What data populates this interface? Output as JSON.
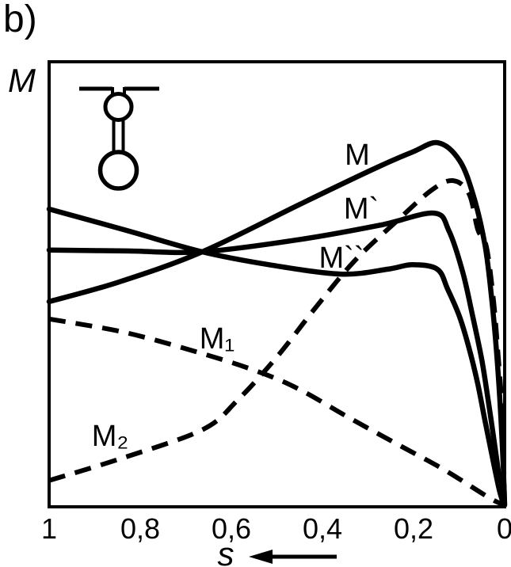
{
  "figure": {
    "panel_label": "b)",
    "background_color": "#ffffff",
    "ink_color": "#000000",
    "inset_icon": "double-cage-rotor-slot-icon",
    "x_direction_arrow": "points-left"
  },
  "chart_data": {
    "type": "line",
    "title": "",
    "xlabel": "s",
    "ylabel": "M",
    "grid": false,
    "legend_position": "inline-curve-labels",
    "x_axis": {
      "range": [
        1,
        0
      ],
      "reversed": true,
      "ticks": [
        {
          "value": 1.0,
          "label": "1"
        },
        {
          "value": 0.8,
          "label": "0,8"
        },
        {
          "value": 0.6,
          "label": "0,6"
        },
        {
          "value": 0.4,
          "label": "0,4"
        },
        {
          "value": 0.2,
          "label": "0,2"
        },
        {
          "value": 0.0,
          "label": "0"
        }
      ]
    },
    "y_axis": {
      "range": [
        0,
        1
      ],
      "ticks": []
    },
    "series": [
      {
        "id": "M",
        "label": "M",
        "style": "solid",
        "label_pos": {
          "x": 451,
          "y": 208
        },
        "points": [
          [
            1,
            0.461
          ],
          [
            0.847,
            0.505
          ],
          [
            0.664,
            0.573
          ],
          [
            0.447,
            0.681
          ],
          [
            0.29,
            0.758
          ],
          [
            0.203,
            0.797
          ],
          [
            0.146,
            0.818
          ],
          [
            0.099,
            0.778
          ],
          [
            0.068,
            0.697
          ],
          [
            0.043,
            0.587
          ],
          [
            0.028,
            0.463
          ],
          [
            0.017,
            0.338
          ],
          [
            0.009,
            0.214
          ],
          [
            0.003,
            0.089
          ],
          [
            0,
            0.004
          ]
        ]
      },
      {
        "id": "M-prime",
        "label": "M`",
        "style": "solid",
        "label_pos": {
          "x": 456,
          "y": 276
        },
        "points": [
          [
            1,
            0.577
          ],
          [
            0.83,
            0.575
          ],
          [
            0.664,
            0.573
          ],
          [
            0.447,
            0.601
          ],
          [
            0.273,
            0.633
          ],
          [
            0.155,
            0.66
          ],
          [
            0.122,
            0.619
          ],
          [
            0.092,
            0.527
          ],
          [
            0.07,
            0.427
          ],
          [
            0.05,
            0.329
          ],
          [
            0.035,
            0.231
          ],
          [
            0.021,
            0.133
          ],
          [
            0.009,
            0.044
          ],
          [
            0.002,
            0.004
          ]
        ]
      },
      {
        "id": "M-double-prime",
        "label": "M``",
        "style": "solid",
        "label_pos": {
          "x": 431,
          "y": 338
        },
        "points": [
          [
            1,
            0.669
          ],
          [
            0.83,
            0.621
          ],
          [
            0.664,
            0.573
          ],
          [
            0.517,
            0.544
          ],
          [
            0.36,
            0.523
          ],
          [
            0.256,
            0.534
          ],
          [
            0.203,
            0.544
          ],
          [
            0.148,
            0.534
          ],
          [
            0.125,
            0.489
          ],
          [
            0.099,
            0.427
          ],
          [
            0.078,
            0.356
          ],
          [
            0.059,
            0.276
          ],
          [
            0.042,
            0.187
          ],
          [
            0.026,
            0.107
          ],
          [
            0.012,
            0.039
          ],
          [
            0.002,
            0.004
          ]
        ]
      },
      {
        "id": "M1",
        "label": "M₁",
        "style": "dashed",
        "label_pos": {
          "x": 274,
          "y": 440
        },
        "points": [
          [
            1,
            0.422
          ],
          [
            0.83,
            0.391
          ],
          [
            0.656,
            0.342
          ],
          [
            0.534,
            0.301
          ],
          [
            0.447,
            0.262
          ],
          [
            0.343,
            0.201
          ],
          [
            0.238,
            0.142
          ],
          [
            0.134,
            0.084
          ],
          [
            0.03,
            0.018
          ],
          [
            0,
            0.005
          ]
        ]
      },
      {
        "id": "M2",
        "label": "M₂",
        "style": "dashed",
        "label_pos": {
          "x": 139,
          "y": 563
        },
        "points": [
          [
            1,
            0.059
          ],
          [
            0.847,
            0.107
          ],
          [
            0.664,
            0.173
          ],
          [
            0.586,
            0.24
          ],
          [
            0.499,
            0.338
          ],
          [
            0.417,
            0.445
          ],
          [
            0.33,
            0.552
          ],
          [
            0.238,
            0.641
          ],
          [
            0.16,
            0.712
          ],
          [
            0.113,
            0.733
          ],
          [
            0.078,
            0.703
          ],
          [
            0.059,
            0.623
          ],
          [
            0.04,
            0.584
          ],
          [
            0.024,
            0.459
          ],
          [
            0.014,
            0.335
          ],
          [
            0.005,
            0.21
          ],
          [
            0.002,
            0.089
          ],
          [
            0,
            0.004
          ]
        ]
      }
    ]
  }
}
